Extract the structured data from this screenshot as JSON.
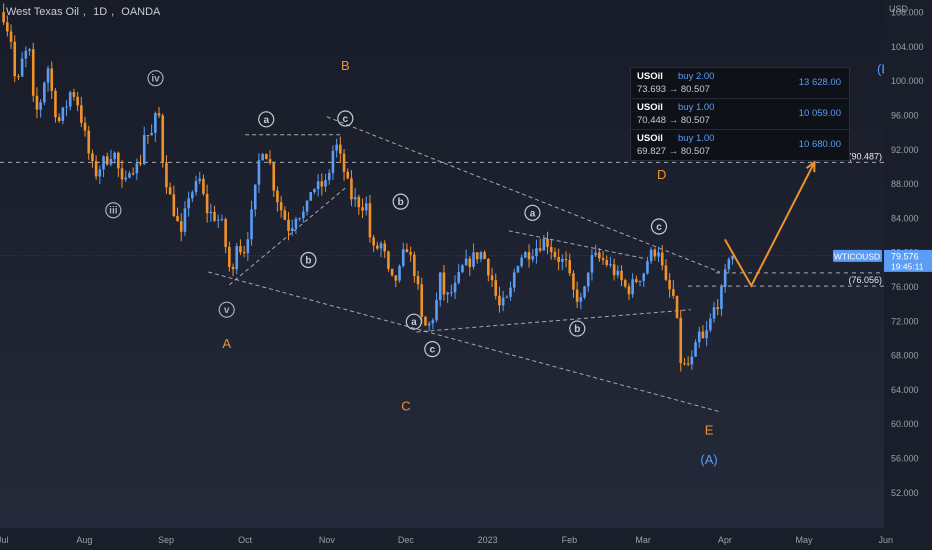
{
  "header": {
    "symbol_name": "West Texas Oil",
    "interval": "1D",
    "source": "OANDA",
    "separator": ","
  },
  "axis_currency": "USD",
  "positions": [
    {
      "symbol": "USOil",
      "side": "buy 2.00",
      "entry": "73.693",
      "target": "80.507",
      "qty": "13 628.00"
    },
    {
      "symbol": "USOil",
      "side": "buy 1.00",
      "entry": "70.448",
      "target": "80.507",
      "qty": "10 059.00"
    },
    {
      "symbol": "USOil",
      "side": "buy 1.00",
      "entry": "69.827",
      "target": "80.507",
      "qty": "10 680.00"
    }
  ],
  "arrow_glyph": "→",
  "chart_data": {
    "type": "candlestick",
    "symbol": "WTICOUSD",
    "ylim": [
      50,
      110
    ],
    "y_ticks": [
      "52.000",
      "56.000",
      "60.000",
      "64.000",
      "68.000",
      "72.000",
      "76.000",
      "80.000",
      "84.000",
      "88.000",
      "92.000",
      "96.000",
      "100.000",
      "104.000",
      "108.000"
    ],
    "x_ticks": [
      "Jul",
      "Aug",
      "Sep",
      "Oct",
      "Nov",
      "Dec",
      "2023",
      "Feb",
      "Mar",
      "Apr",
      "May",
      "Jun"
    ],
    "x_tick_dates": [
      "2022-07-01",
      "2022-08-01",
      "2022-09-01",
      "2022-10-01",
      "2022-11-01",
      "2022-12-01",
      "2023-01-01",
      "2023-02-01",
      "2023-03-01",
      "2023-04-01",
      "2023-05-01",
      "2023-06-01"
    ],
    "close_path": [
      [
        "2022-07-01",
        108.0
      ],
      [
        "2022-07-05",
        104.0
      ],
      [
        "2022-07-06",
        98.0
      ],
      [
        "2022-07-08",
        102.0
      ],
      [
        "2022-07-11",
        104.0
      ],
      [
        "2022-07-13",
        96.0
      ],
      [
        "2022-07-15",
        97.0
      ],
      [
        "2022-07-18",
        102.0
      ],
      [
        "2022-07-20",
        98.0
      ],
      [
        "2022-07-22",
        95.0
      ],
      [
        "2022-07-25",
        97.0
      ],
      [
        "2022-07-27",
        99.0
      ],
      [
        "2022-07-29",
        98.0
      ],
      [
        "2022-08-01",
        94.0
      ],
      [
        "2022-08-03",
        91.0
      ],
      [
        "2022-08-05",
        89.0
      ],
      [
        "2022-08-08",
        90.5
      ],
      [
        "2022-08-10",
        91.0
      ],
      [
        "2022-08-12",
        92.0
      ],
      [
        "2022-08-16",
        87.0
      ],
      [
        "2022-08-18",
        90.0
      ],
      [
        "2022-08-22",
        90.0
      ],
      [
        "2022-08-24",
        94.5
      ],
      [
        "2022-08-26",
        93.0
      ],
      [
        "2022-08-29",
        97.0
      ],
      [
        "2022-08-31",
        90.0
      ],
      [
        "2022-09-02",
        87.0
      ],
      [
        "2022-09-07",
        81.5
      ],
      [
        "2022-09-09",
        86.5
      ],
      [
        "2022-09-12",
        87.5
      ],
      [
        "2022-09-14",
        88.5
      ],
      [
        "2022-09-16",
        85.0
      ],
      [
        "2022-09-20",
        84.0
      ],
      [
        "2022-09-22",
        83.5
      ],
      [
        "2022-09-26",
        76.5
      ],
      [
        "2022-09-28",
        82.0
      ],
      [
        "2022-09-30",
        79.5
      ],
      [
        "2022-10-03",
        83.5
      ],
      [
        "2022-10-05",
        87.5
      ],
      [
        "2022-10-07",
        92.5
      ],
      [
        "2022-10-10",
        91.0
      ],
      [
        "2022-10-12",
        87.5
      ],
      [
        "2022-10-14",
        85.5
      ],
      [
        "2022-10-18",
        82.5
      ],
      [
        "2022-10-20",
        84.5
      ],
      [
        "2022-10-24",
        84.5
      ],
      [
        "2022-10-26",
        87.5
      ],
      [
        "2022-10-28",
        87.5
      ],
      [
        "2022-11-01",
        88.0
      ],
      [
        "2022-11-04",
        93.0
      ],
      [
        "2022-11-08",
        89.0
      ],
      [
        "2022-11-10",
        86.5
      ],
      [
        "2022-11-14",
        85.5
      ],
      [
        "2022-11-16",
        85.5
      ],
      [
        "2022-11-18",
        80.0
      ],
      [
        "2022-11-22",
        81.0
      ],
      [
        "2022-11-25",
        76.5
      ],
      [
        "2022-11-28",
        77.0
      ],
      [
        "2022-12-01",
        81.0
      ],
      [
        "2022-12-05",
        77.0
      ],
      [
        "2022-12-07",
        72.0
      ],
      [
        "2022-12-09",
        71.0
      ],
      [
        "2022-12-12",
        73.0
      ],
      [
        "2022-12-14",
        77.0
      ],
      [
        "2022-12-16",
        74.5
      ],
      [
        "2022-12-20",
        76.0
      ],
      [
        "2022-12-22",
        78.0
      ],
      [
        "2022-12-27",
        79.5
      ],
      [
        "2022-12-30",
        80.0
      ],
      [
        "2023-01-03",
        76.5
      ],
      [
        "2023-01-05",
        73.5
      ],
      [
        "2023-01-09",
        74.5
      ],
      [
        "2023-01-11",
        77.5
      ],
      [
        "2023-01-13",
        79.5
      ],
      [
        "2023-01-17",
        80.0
      ],
      [
        "2023-01-19",
        80.5
      ],
      [
        "2023-01-23",
        81.5
      ],
      [
        "2023-01-25",
        80.5
      ],
      [
        "2023-01-27",
        79.5
      ],
      [
        "2023-01-31",
        78.5
      ],
      [
        "2023-02-02",
        75.5
      ],
      [
        "2023-02-06",
        74.0
      ],
      [
        "2023-02-08",
        78.0
      ],
      [
        "2023-02-10",
        79.5
      ],
      [
        "2023-02-14",
        79.0
      ],
      [
        "2023-02-16",
        78.5
      ],
      [
        "2023-02-21",
        76.5
      ],
      [
        "2023-02-23",
        75.5
      ],
      [
        "2023-02-27",
        77.0
      ],
      [
        "2023-03-01",
        77.5
      ],
      [
        "2023-03-03",
        79.5
      ],
      [
        "2023-03-07",
        80.5
      ],
      [
        "2023-03-09",
        76.5
      ],
      [
        "2023-03-13",
        74.5
      ],
      [
        "2023-03-15",
        67.5
      ],
      [
        "2023-03-17",
        66.5
      ],
      [
        "2023-03-20",
        67.5
      ],
      [
        "2023-03-22",
        70.5
      ],
      [
        "2023-03-24",
        69.5
      ],
      [
        "2023-03-28",
        73.5
      ],
      [
        "2023-03-30",
        74.5
      ],
      [
        "2023-03-31",
        75.5
      ],
      [
        "2023-04-03",
        80.5
      ],
      [
        "2023-04-04",
        79.6
      ]
    ],
    "last_price": {
      "symbol": "WTICOUSD",
      "value": "79.576",
      "countdown": "19:45:11",
      "y": 79.576
    },
    "levels": [
      {
        "label": "(90.487)",
        "y": 90.487,
        "style": "dashed"
      },
      {
        "label": "(76.056)",
        "y": 76.056,
        "style": "dashed"
      },
      {
        "label": "",
        "y": 77.6,
        "style": "dashed"
      }
    ],
    "projection": [
      [
        "2023-04-01",
        81.5
      ],
      [
        "2023-04-11",
        76.1
      ],
      [
        "2023-05-05",
        90.5
      ]
    ],
    "trendlines": [
      [
        "2022-11-01",
        95.8,
        "2023-03-30",
        77.7
      ],
      [
        "2022-09-17",
        77.7,
        "2023-03-30",
        61.4
      ],
      [
        "2022-09-25",
        76.2,
        "2022-11-08",
        87.5
      ],
      [
        "2022-10-01",
        93.7,
        "2022-11-07",
        93.7
      ],
      [
        "2022-12-05",
        70.7,
        "2023-03-19",
        73.3
      ],
      [
        "2023-01-09",
        82.5,
        "2023-03-01",
        79.3
      ]
    ],
    "wave_labels": [
      {
        "text": "B",
        "date": "2022-11-08",
        "y": 101.7,
        "color": "#f0922b",
        "shape": "plain"
      },
      {
        "text": "(B)",
        "date": "2023-06-01",
        "y": 101.3,
        "color": "#5b9cf4",
        "shape": "plain"
      },
      {
        "text": "D",
        "date": "2023-03-08",
        "y": 89.0,
        "color": "#f0922b",
        "shape": "plain"
      },
      {
        "text": "A",
        "date": "2022-09-24",
        "y": 69.3,
        "color": "#f0922b",
        "shape": "plain"
      },
      {
        "text": "C",
        "date": "2022-12-01",
        "y": 62.0,
        "color": "#f0922b",
        "shape": "plain"
      },
      {
        "text": "E",
        "date": "2023-03-26",
        "y": 59.2,
        "color": "#f0922b",
        "shape": "plain"
      },
      {
        "text": "(A)",
        "date": "2023-03-26",
        "y": 55.8,
        "color": "#5b9cf4",
        "shape": "plain"
      },
      {
        "text": "iv",
        "date": "2022-08-28",
        "y": 100.3,
        "color": "#a8b0c0",
        "shape": "circle"
      },
      {
        "text": "iii",
        "date": "2022-08-12",
        "y": 84.9,
        "color": "#a8b0c0",
        "shape": "circle"
      },
      {
        "text": "v",
        "date": "2022-09-24",
        "y": 73.3,
        "color": "#a8b0c0",
        "shape": "circle"
      },
      {
        "text": "a",
        "date": "2022-10-09",
        "y": 95.5,
        "color": "#c8ccd6",
        "shape": "circle"
      },
      {
        "text": "b",
        "date": "2022-10-25",
        "y": 79.1,
        "color": "#c8ccd6",
        "shape": "circle"
      },
      {
        "text": "c",
        "date": "2022-11-08",
        "y": 95.6,
        "color": "#c8ccd6",
        "shape": "circle"
      },
      {
        "text": "b",
        "date": "2022-11-29",
        "y": 85.9,
        "color": "#c8ccd6",
        "shape": "circle"
      },
      {
        "text": "a",
        "date": "2022-12-04",
        "y": 71.9,
        "color": "#c8ccd6",
        "shape": "circle"
      },
      {
        "text": "c",
        "date": "2022-12-11",
        "y": 68.7,
        "color": "#c8ccd6",
        "shape": "circle"
      },
      {
        "text": "a",
        "date": "2023-01-18",
        "y": 84.6,
        "color": "#c8ccd6",
        "shape": "circle"
      },
      {
        "text": "b",
        "date": "2023-02-04",
        "y": 71.1,
        "color": "#c8ccd6",
        "shape": "circle"
      },
      {
        "text": "c",
        "date": "2023-03-07",
        "y": 83.0,
        "color": "#c8ccd6",
        "shape": "circle"
      }
    ],
    "colors": {
      "up": "#5b9cf4",
      "down": "#f0922b",
      "projection": "#f0922b",
      "trendline": "#d0d4dc",
      "grid": "#2a2f3d",
      "axis_text": "#9aa0ab"
    }
  }
}
